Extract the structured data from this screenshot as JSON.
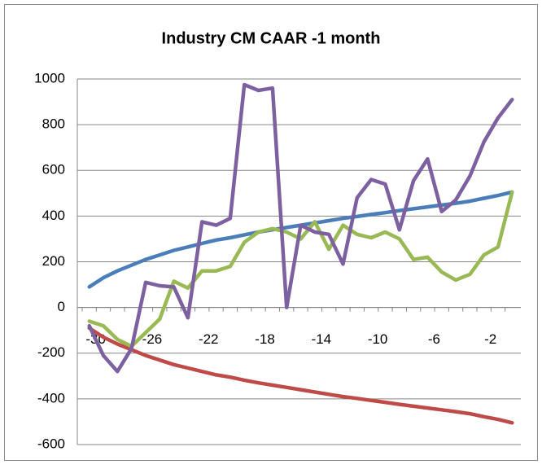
{
  "chart_data": {
    "type": "line",
    "title": "Industry CM CAAR -1 month",
    "categories": [
      -30,
      null,
      null,
      null,
      -26,
      null,
      null,
      null,
      -22,
      null,
      null,
      null,
      -18,
      null,
      null,
      null,
      -14,
      null,
      null,
      null,
      -10,
      null,
      null,
      null,
      -6,
      null,
      null,
      null,
      -2,
      null,
      null
    ],
    "series": [
      {
        "color": "#4a7ebb",
        "values": [
          90,
          130,
          160,
          185,
          210,
          230,
          250,
          265,
          280,
          295,
          305,
          318,
          330,
          340,
          350,
          360,
          370,
          380,
          390,
          398,
          407,
          415,
          424,
          432,
          440,
          448,
          456,
          465,
          478,
          490,
          505
        ]
      },
      {
        "color": "#be4b48",
        "values": [
          -90,
          -130,
          -160,
          -185,
          -210,
          -230,
          -250,
          -265,
          -280,
          -295,
          -305,
          -318,
          -330,
          -340,
          -350,
          -360,
          -370,
          -380,
          -390,
          -398,
          -407,
          -415,
          -424,
          -432,
          -440,
          -448,
          -456,
          -465,
          -478,
          -490,
          -505
        ]
      },
      {
        "color": "#98b954",
        "values": [
          -60,
          -80,
          -140,
          -170,
          -110,
          -50,
          115,
          85,
          160,
          160,
          180,
          285,
          330,
          345,
          330,
          300,
          375,
          255,
          360,
          320,
          305,
          330,
          300,
          210,
          220,
          155,
          120,
          145,
          230,
          265,
          505
        ]
      },
      {
        "color": "#7d60a0",
        "values": [
          -80,
          -210,
          -280,
          -180,
          110,
          95,
          90,
          -45,
          375,
          360,
          390,
          975,
          950,
          960,
          0,
          360,
          330,
          320,
          190,
          480,
          560,
          540,
          340,
          555,
          650,
          420,
          470,
          575,
          725,
          830,
          910
        ]
      }
    ],
    "ylim": [
      -600,
      1000
    ],
    "yticks": [
      -600,
      -400,
      -200,
      0,
      200,
      400,
      600,
      800,
      1000
    ],
    "grid": true
  }
}
